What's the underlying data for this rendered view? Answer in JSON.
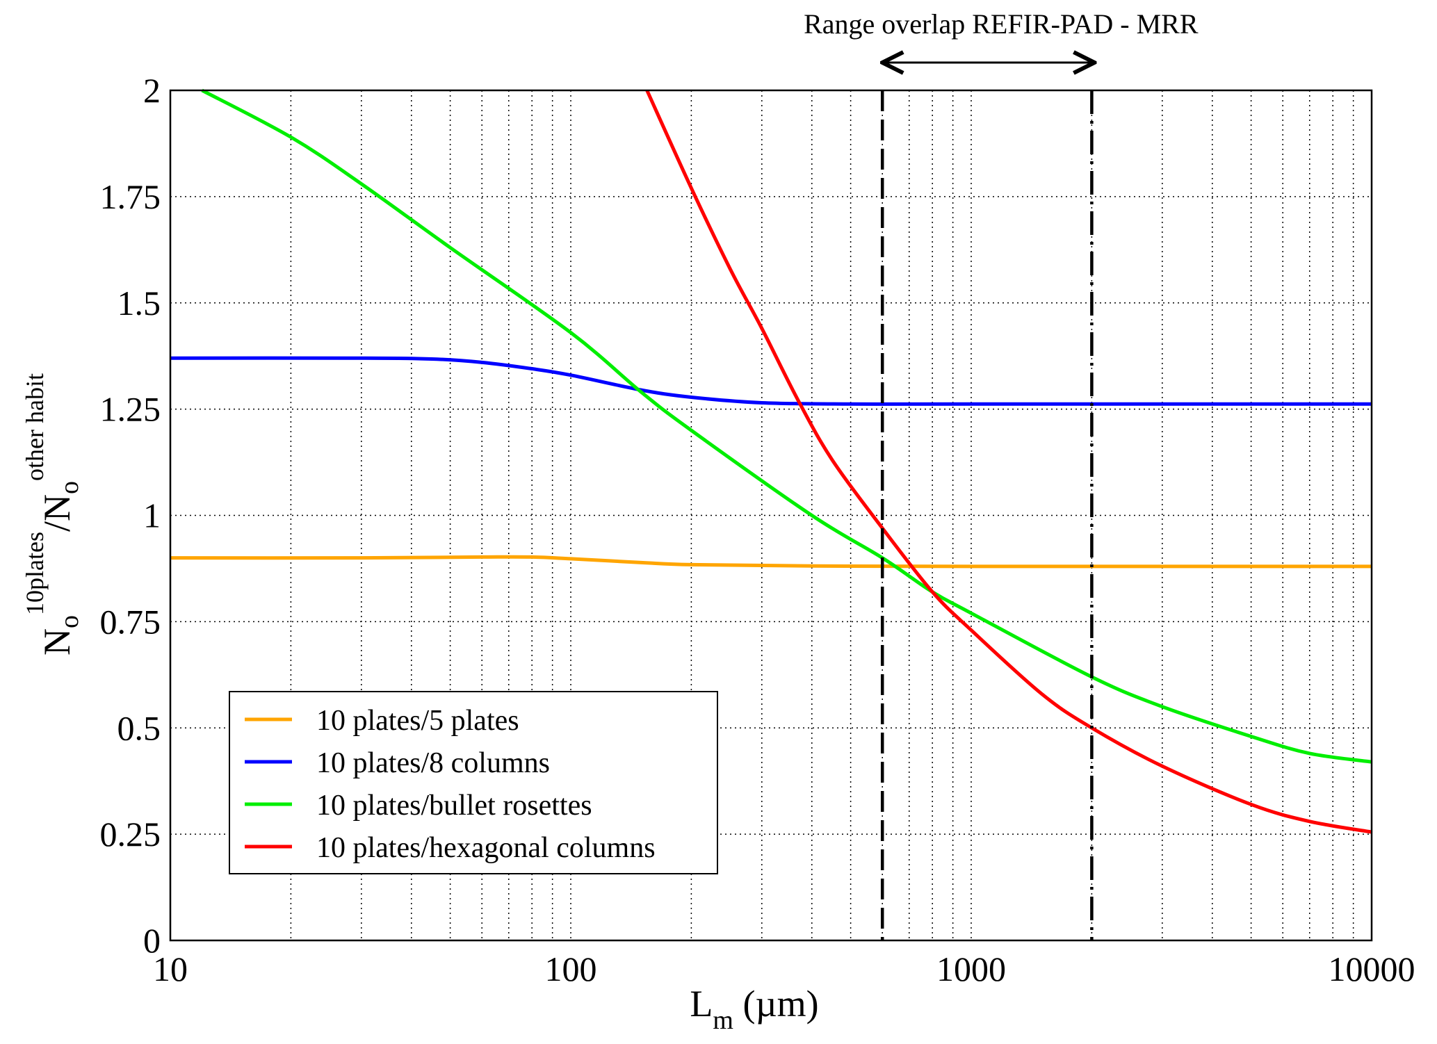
{
  "chart_data": {
    "type": "line",
    "title": "",
    "xlabel": {
      "main": "L",
      "sub": "m",
      "unit": " (µm)"
    },
    "ylabel": {
      "n1": "N",
      "sub1": "o",
      "sup1": "10plates",
      "slash": "/",
      "n2": "N",
      "sub2": "o",
      "sup2": "other habit"
    },
    "xscale": "log",
    "xlim": [
      10,
      10000
    ],
    "ylim": [
      0,
      2
    ],
    "xticks": [
      10,
      100,
      1000,
      10000
    ],
    "xtick_labels": [
      "10",
      "100",
      "1000",
      "10000"
    ],
    "yticks": [
      0,
      0.25,
      0.5,
      0.75,
      1,
      1.25,
      1.5,
      1.75,
      2
    ],
    "ytick_labels": [
      "0",
      "0.25",
      "0.5",
      "0.75",
      "1",
      "1.25",
      "1.5",
      "1.75",
      "2"
    ],
    "grid": true,
    "legend_position": "bottom-left",
    "series": [
      {
        "name": "10 plates/5 plates",
        "color": "#ffa500",
        "x": [
          10,
          30,
          60,
          80,
          100,
          150,
          200,
          400,
          1000,
          10000
        ],
        "y": [
          0.9,
          0.9,
          0.902,
          0.902,
          0.898,
          0.889,
          0.884,
          0.881,
          0.88,
          0.88
        ]
      },
      {
        "name": "10 plates/8 columns",
        "color": "#0000ff",
        "x": [
          10,
          30,
          45,
          60,
          80,
          100,
          150,
          200,
          300,
          500,
          1000,
          10000
        ],
        "y": [
          1.37,
          1.37,
          1.368,
          1.36,
          1.345,
          1.33,
          1.295,
          1.278,
          1.265,
          1.262,
          1.262,
          1.262
        ]
      },
      {
        "name": "10 plates/bullet rosettes",
        "color": "#00ee00",
        "x": [
          12,
          20,
          30,
          50,
          100,
          150,
          200,
          400,
          600,
          800,
          1000,
          2000,
          3000,
          5000,
          7000,
          10000
        ],
        "y": [
          2.0,
          1.89,
          1.78,
          1.63,
          1.43,
          1.29,
          1.2,
          1.0,
          0.9,
          0.82,
          0.77,
          0.62,
          0.55,
          0.48,
          0.44,
          0.42
        ]
      },
      {
        "name": "10 plates/hexagonal columns",
        "color": "#ff0000",
        "x": [
          155,
          200,
          250,
          300,
          370,
          450,
          600,
          800,
          1000,
          1500,
          2000,
          3000,
          5000,
          7000,
          10000
        ],
        "y": [
          2.0,
          1.77,
          1.58,
          1.44,
          1.27,
          1.13,
          0.97,
          0.82,
          0.73,
          0.58,
          0.5,
          0.41,
          0.32,
          0.28,
          0.255
        ]
      }
    ],
    "vlines": [
      {
        "x": 600,
        "style": "dashed"
      },
      {
        "x": 2000,
        "style": "dashdot"
      }
    ],
    "annotation": {
      "text": "Range overlap REFIR-PAD - MRR",
      "x_from": 600,
      "x_to": 2000
    }
  }
}
